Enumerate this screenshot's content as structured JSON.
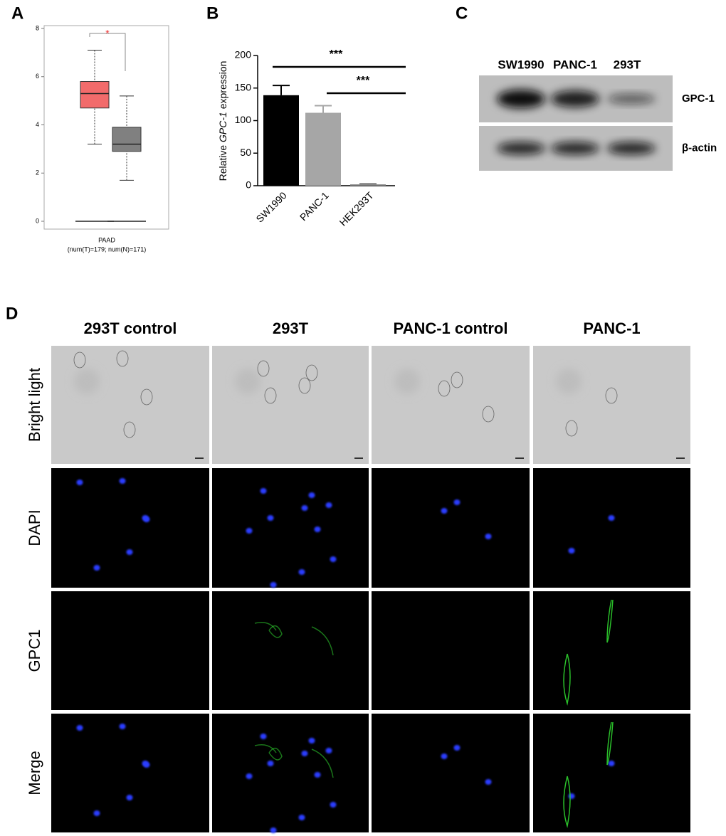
{
  "panel_labels": [
    "A",
    "B",
    "C",
    "D"
  ],
  "chart_data": [
    {
      "type": "box",
      "categories": [
        "PAAD"
      ],
      "annotation": "(num(T)=179; num(N)=171)",
      "significance": "*",
      "series": [
        {
          "color": "#f26b6b",
          "whisker_low": 3.2,
          "q1": 4.7,
          "median": 5.3,
          "q3": 5.8,
          "whisker_high": 7.1
        },
        {
          "color": "#808080",
          "whisker_low": 1.7,
          "q1": 2.9,
          "median": 3.2,
          "q3": 3.9,
          "whisker_high": 5.2
        }
      ],
      "ylim": [
        0,
        8
      ],
      "yticks": [
        0,
        2,
        4,
        6,
        8
      ]
    },
    {
      "type": "bar",
      "ylabel": [
        "Relative ",
        "GPC-1",
        " expression"
      ],
      "categories": [
        "SW1990",
        "PANC-1",
        "HEK293T"
      ],
      "values": [
        139,
        112,
        2
      ],
      "errors": [
        15,
        11,
        1
      ],
      "colors": [
        "#000000",
        "#a6a6a6",
        "#808080"
      ],
      "significance": [
        {
          "label": "***",
          "from": 0,
          "to": 2
        },
        {
          "label": "***",
          "from": 1,
          "to": 2
        }
      ],
      "ylim": [
        0,
        200
      ],
      "yticks": [
        0,
        50,
        100,
        150,
        200
      ]
    }
  ],
  "western_blot": {
    "lanes": [
      "SW1990",
      "PANC-1",
      "293T"
    ],
    "rows": [
      "GPC-1",
      "β-actin"
    ]
  },
  "microscopy": {
    "columns": [
      "293T control",
      "293T",
      "PANC-1 control",
      "PANC-1"
    ],
    "rows": [
      "Bright light",
      "DAPI",
      "GPC1",
      "Merge"
    ]
  }
}
